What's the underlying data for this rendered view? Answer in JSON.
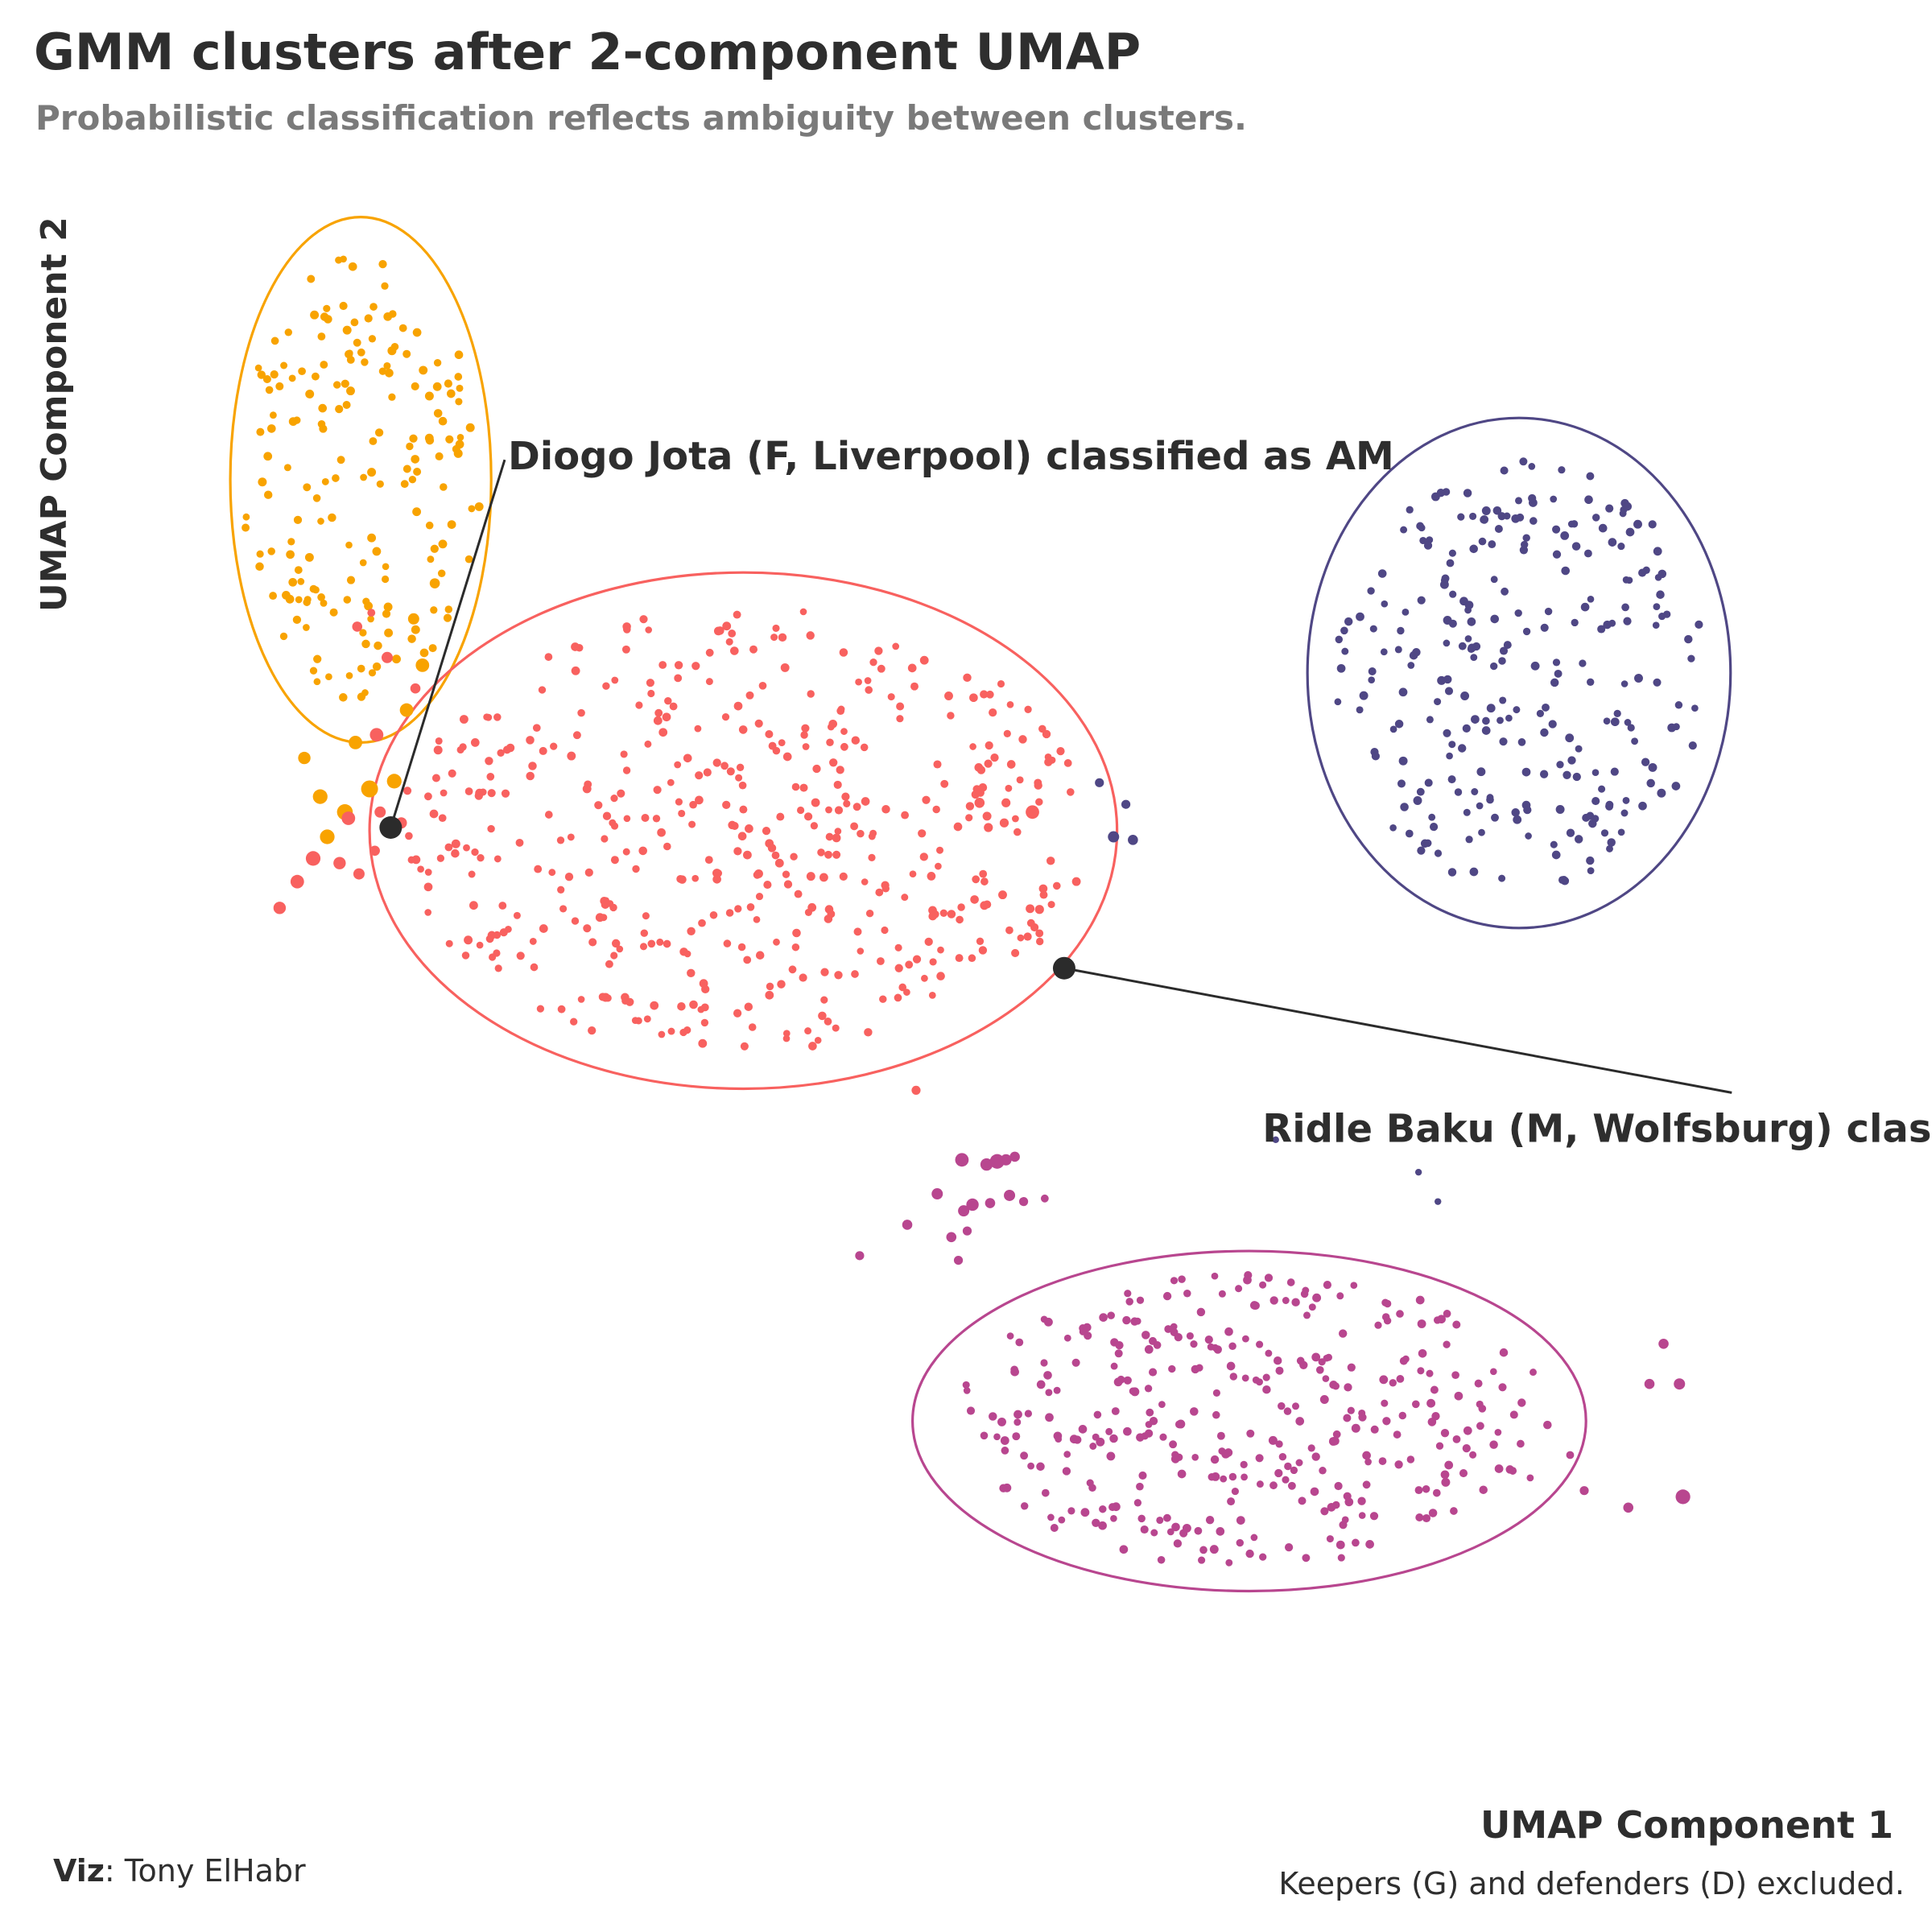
{
  "title": "GMM clusters after 2-component UMAP",
  "subtitle": "Probabilistic classification reflects ambiguity between clusters.",
  "caption": "Keepers (G) and defenders (D) excluded.",
  "credit_label": "Viz",
  "credit_name": ": Tony ElHabr",
  "chart_data": {
    "type": "scatter",
    "xlabel": "UMAP Component 1",
    "ylabel": "UMAP Component 2",
    "xlim": [
      0,
      100
    ],
    "ylim": [
      0,
      100
    ],
    "grid": false,
    "legend": "none",
    "clusters": [
      {
        "color": "#f8a300",
        "ellipse": {
          "cx": 12.7,
          "cy": 82.5,
          "rx": 7.4,
          "ry": 17.0
        },
        "n_points": 180,
        "seed": 11,
        "spread": {
          "x": 6.8,
          "y": 14.5
        }
      },
      {
        "color": "#f8615f",
        "ellipse": {
          "cx": 34.4,
          "cy": 59.8,
          "rx": 21.2,
          "ry": 16.7
        },
        "n_points": 460,
        "seed": 23,
        "spread": {
          "x": 19.5,
          "y": 14.5
        }
      },
      {
        "color": "#4f4785",
        "ellipse": {
          "cx": 78.4,
          "cy": 70.0,
          "rx": 12.0,
          "ry": 16.5
        },
        "n_points": 260,
        "seed": 37,
        "spread": {
          "x": 10.5,
          "y": 14.0
        }
      },
      {
        "color": "#b8468f",
        "ellipse": {
          "cx": 63.1,
          "cy": 21.6,
          "rx": 19.1,
          "ry": 11.0
        },
        "n_points": 340,
        "seed": 53,
        "spread": {
          "x": 17.5,
          "y": 9.5
        }
      }
    ],
    "ambiguous_points": [
      {
        "x": 11.8,
        "y": 61.0,
        "c": 0,
        "s": 1.4
      },
      {
        "x": 13.2,
        "y": 62.5,
        "c": 0,
        "s": 1.5
      },
      {
        "x": 14.6,
        "y": 63.0,
        "c": 0,
        "s": 1.3
      },
      {
        "x": 10.4,
        "y": 62.0,
        "c": 0,
        "s": 1.3
      },
      {
        "x": 12.4,
        "y": 65.5,
        "c": 0,
        "s": 1.2
      },
      {
        "x": 15.3,
        "y": 67.6,
        "c": 0,
        "s": 1.2
      },
      {
        "x": 16.2,
        "y": 70.5,
        "c": 0,
        "s": 1.2
      },
      {
        "x": 15.7,
        "y": 73.5,
        "c": 0,
        "s": 1.0
      },
      {
        "x": 9.5,
        "y": 64.5,
        "c": 0,
        "s": 1.1
      },
      {
        "x": 16.9,
        "y": 75.8,
        "c": 0,
        "s": 0.9
      },
      {
        "x": 10.8,
        "y": 59.4,
        "c": 0,
        "s": 1.3
      },
      {
        "x": 13.6,
        "y": 66.0,
        "c": 1,
        "s": 1.2
      },
      {
        "x": 12.0,
        "y": 60.6,
        "c": 1,
        "s": 1.2
      },
      {
        "x": 10.0,
        "y": 58.0,
        "c": 1,
        "s": 1.3
      },
      {
        "x": 9.1,
        "y": 56.5,
        "c": 1,
        "s": 1.2
      },
      {
        "x": 11.5,
        "y": 57.7,
        "c": 1,
        "s": 1.1
      },
      {
        "x": 12.6,
        "y": 57.0,
        "c": 1,
        "s": 1.0
      },
      {
        "x": 13.8,
        "y": 61.0,
        "c": 1,
        "s": 1.0
      },
      {
        "x": 15.0,
        "y": 60.3,
        "c": 1,
        "s": 1.0
      },
      {
        "x": 8.1,
        "y": 54.8,
        "c": 1,
        "s": 1.1
      },
      {
        "x": 13.5,
        "y": 58.5,
        "c": 1,
        "s": 0.9
      },
      {
        "x": 14.2,
        "y": 71.0,
        "c": 1,
        "s": 1.0
      },
      {
        "x": 12.5,
        "y": 73.0,
        "c": 1,
        "s": 0.9
      },
      {
        "x": 13.3,
        "y": 73.9,
        "c": 1,
        "s": 0.7
      },
      {
        "x": 15.8,
        "y": 69.0,
        "c": 1,
        "s": 0.9
      },
      {
        "x": 47.8,
        "y": 61.6,
        "c": 1,
        "s": 0.9
      },
      {
        "x": 49.3,
        "y": 61.6,
        "c": 1,
        "s": 0.8
      },
      {
        "x": 50.8,
        "y": 61.0,
        "c": 1,
        "s": 1.2
      },
      {
        "x": 48.3,
        "y": 60.0,
        "c": 1,
        "s": 0.8
      },
      {
        "x": 49.2,
        "y": 60.3,
        "c": 1,
        "s": 0.8
      },
      {
        "x": 48.0,
        "y": 57.0,
        "c": 1,
        "s": 0.7
      },
      {
        "x": 51.2,
        "y": 54.7,
        "c": 1,
        "s": 0.8
      },
      {
        "x": 44.2,
        "y": 43.0,
        "c": 1,
        "s": 0.8
      },
      {
        "x": 54.6,
        "y": 62.9,
        "c": 2,
        "s": 0.8
      },
      {
        "x": 56.1,
        "y": 61.5,
        "c": 2,
        "s": 0.8
      },
      {
        "x": 55.4,
        "y": 59.4,
        "c": 2,
        "s": 1.0
      },
      {
        "x": 56.5,
        "y": 59.2,
        "c": 2,
        "s": 0.9
      },
      {
        "x": 64.6,
        "y": 39.8,
        "c": 2,
        "s": 0.6
      },
      {
        "x": 72.7,
        "y": 37.7,
        "c": 2,
        "s": 0.6
      },
      {
        "x": 73.8,
        "y": 35.8,
        "c": 2,
        "s": 0.6
      },
      {
        "x": 46.8,
        "y": 38.5,
        "c": 3,
        "s": 1.2
      },
      {
        "x": 48.2,
        "y": 38.2,
        "c": 3,
        "s": 1.1
      },
      {
        "x": 48.8,
        "y": 38.4,
        "c": 3,
        "s": 1.3
      },
      {
        "x": 49.3,
        "y": 38.5,
        "c": 3,
        "s": 1.0
      },
      {
        "x": 49.8,
        "y": 38.7,
        "c": 3,
        "s": 0.9
      },
      {
        "x": 45.4,
        "y": 36.3,
        "c": 3,
        "s": 1.0
      },
      {
        "x": 46.9,
        "y": 35.2,
        "c": 3,
        "s": 1.0
      },
      {
        "x": 47.4,
        "y": 35.6,
        "c": 3,
        "s": 1.1
      },
      {
        "x": 48.4,
        "y": 35.7,
        "c": 3,
        "s": 0.9
      },
      {
        "x": 49.5,
        "y": 36.2,
        "c": 3,
        "s": 1.0
      },
      {
        "x": 50.3,
        "y": 35.8,
        "c": 3,
        "s": 0.8
      },
      {
        "x": 46.2,
        "y": 33.5,
        "c": 3,
        "s": 0.9
      },
      {
        "x": 47.1,
        "y": 33.9,
        "c": 3,
        "s": 0.8
      },
      {
        "x": 43.7,
        "y": 34.3,
        "c": 3,
        "s": 0.9
      },
      {
        "x": 41.0,
        "y": 32.3,
        "c": 3,
        "s": 0.8
      },
      {
        "x": 51.5,
        "y": 36.0,
        "c": 3,
        "s": 0.7
      },
      {
        "x": 46.6,
        "y": 32.0,
        "c": 3,
        "s": 0.8
      },
      {
        "x": 86.6,
        "y": 26.6,
        "c": 3,
        "s": 0.9
      },
      {
        "x": 85.8,
        "y": 24.0,
        "c": 3,
        "s": 0.9
      },
      {
        "x": 87.5,
        "y": 24.0,
        "c": 3,
        "s": 1.0
      },
      {
        "x": 87.7,
        "y": 16.7,
        "c": 3,
        "s": 1.3
      },
      {
        "x": 84.6,
        "y": 16.0,
        "c": 3,
        "s": 0.9
      },
      {
        "x": 82.1,
        "y": 17.1,
        "c": 3,
        "s": 0.8
      },
      {
        "x": 81.3,
        "y": 19.4,
        "c": 3,
        "s": 0.7
      }
    ],
    "annotations": [
      {
        "label": "Diogo Jota (F, Liverpool) classified as AM",
        "x": 14.4,
        "y": 60.0,
        "label_x": 20.5,
        "label_y": 84.0
      },
      {
        "label": "Ridle Baku (M, Wolfsburg) classified as AM",
        "x": 52.6,
        "y": 50.9,
        "label_x": 63.3,
        "label_y": 40.5
      }
    ]
  }
}
